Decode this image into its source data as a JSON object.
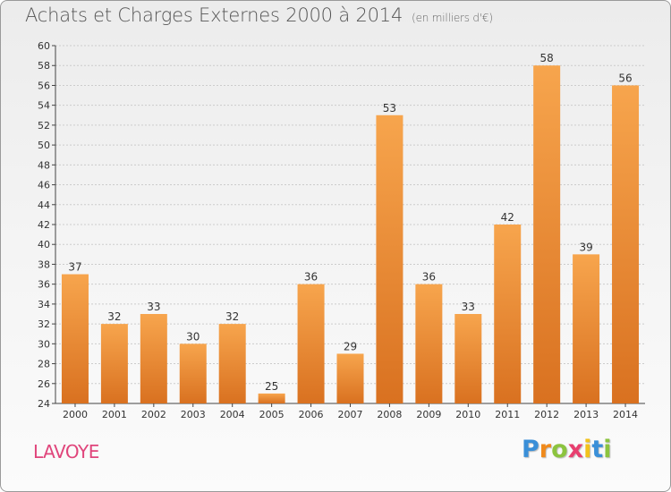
{
  "title": "Achats et Charges Externes 2000 à 2014",
  "unit_note": "(en milliers d'€)",
  "commune": "LAVOYE",
  "logo": {
    "letters": [
      "P",
      "r",
      "o",
      "x",
      "i",
      "t",
      "i"
    ],
    "colors": [
      "#3a8fd8",
      "#f08a1c",
      "#8cc43f",
      "#e83f6f",
      "#f2c21b",
      "#3a8fd8",
      "#8cc43f"
    ]
  },
  "colors": {
    "bar_light": "#f7a54d",
    "bar_dark": "#d97120",
    "axis": "#444444",
    "grid": "#cccccc",
    "name": "#e0457b"
  },
  "chart_data": {
    "type": "bar",
    "categories": [
      "2000",
      "2001",
      "2002",
      "2003",
      "2004",
      "2005",
      "2006",
      "2007",
      "2008",
      "2009",
      "2010",
      "2011",
      "2012",
      "2013",
      "2014"
    ],
    "values": [
      37,
      32,
      33,
      30,
      32,
      25,
      36,
      29,
      53,
      36,
      33,
      42,
      58,
      39,
      56
    ],
    "ylim": [
      24,
      60
    ],
    "yticks": [
      24,
      26,
      28,
      30,
      32,
      34,
      36,
      38,
      40,
      42,
      44,
      46,
      48,
      50,
      52,
      54,
      56,
      58,
      60
    ],
    "grid": true,
    "data_labels": true
  }
}
